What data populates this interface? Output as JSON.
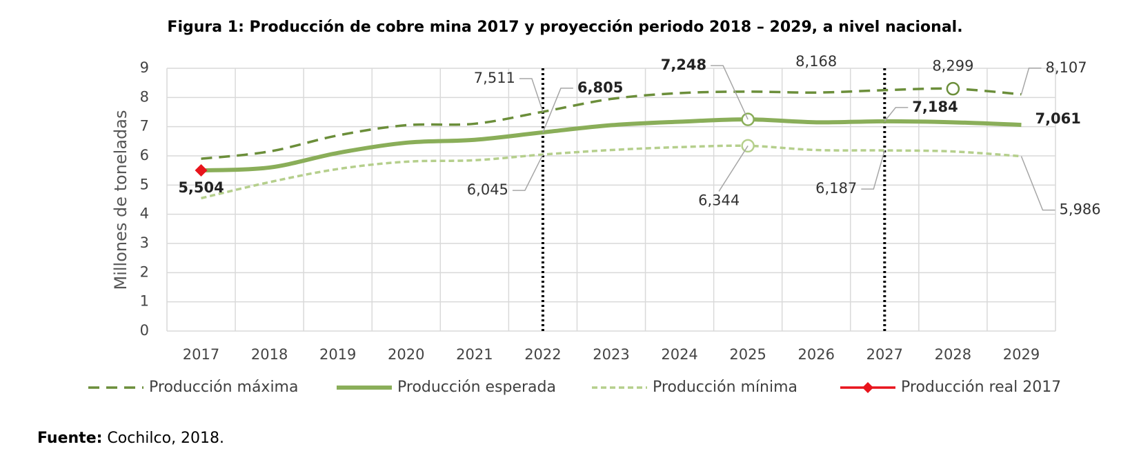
{
  "chart_data": {
    "type": "line",
    "title": "Figura 1: Producción de cobre mina 2017 y proyección periodo 2018 – 2029, a nivel nacional.",
    "y_label": "Millones de toneladas",
    "categories": [
      "2017",
      "2018",
      "2019",
      "2020",
      "2021",
      "2022",
      "2023",
      "2024",
      "2025",
      "2026",
      "2027",
      "2028",
      "2029"
    ],
    "ylim": [
      0,
      9
    ],
    "yticks": [
      0,
      1,
      2,
      3,
      4,
      5,
      6,
      7,
      8,
      9
    ],
    "grid": true,
    "legend": "bottom",
    "reference_lines": [
      "2022",
      "2027"
    ],
    "series": [
      {
        "name": "Producción máxima",
        "color": "#6b8e3a",
        "style": "dashed",
        "label_bold": false,
        "values": [
          5.9,
          6.15,
          6.7,
          7.05,
          7.1,
          7.511,
          7.95,
          8.15,
          8.2,
          8.168,
          8.25,
          8.299,
          8.107
        ],
        "value_labels": [
          null,
          null,
          null,
          null,
          null,
          "7,511",
          null,
          null,
          null,
          "8,168",
          null,
          "8,299",
          "8,107"
        ]
      },
      {
        "name": "Producción esperada",
        "color": "#8aae59",
        "style": "solid",
        "label_bold": true,
        "values": [
          5.5,
          5.6,
          6.1,
          6.45,
          6.55,
          6.805,
          7.05,
          7.17,
          7.248,
          7.15,
          7.184,
          7.15,
          7.061
        ],
        "value_labels": [
          null,
          null,
          null,
          null,
          null,
          "6,805",
          null,
          null,
          "7,248",
          null,
          "7,184",
          null,
          "7,061"
        ]
      },
      {
        "name": "Producción mínima",
        "color": "#b5cf8c",
        "style": "dashed",
        "label_bold": false,
        "values": [
          4.55,
          5.1,
          5.55,
          5.8,
          5.85,
          6.045,
          6.2,
          6.3,
          6.344,
          6.2,
          6.187,
          6.15,
          5.986
        ],
        "value_labels": [
          null,
          null,
          null,
          null,
          null,
          "6,045",
          null,
          null,
          "6,344",
          null,
          "6,187",
          null,
          "5,986"
        ]
      },
      {
        "name": "Producción real 2017",
        "color": "#e8141c",
        "style": "diamond",
        "label_bold": true,
        "values": [
          5.504,
          null,
          null,
          null,
          null,
          null,
          null,
          null,
          null,
          null,
          null,
          null,
          null
        ],
        "value_labels": [
          "5,504",
          null,
          null,
          null,
          null,
          null,
          null,
          null,
          null,
          null,
          null,
          null,
          null
        ]
      }
    ],
    "source": {
      "label": "Fuente:",
      "text": "Cochilco, 2018."
    }
  }
}
